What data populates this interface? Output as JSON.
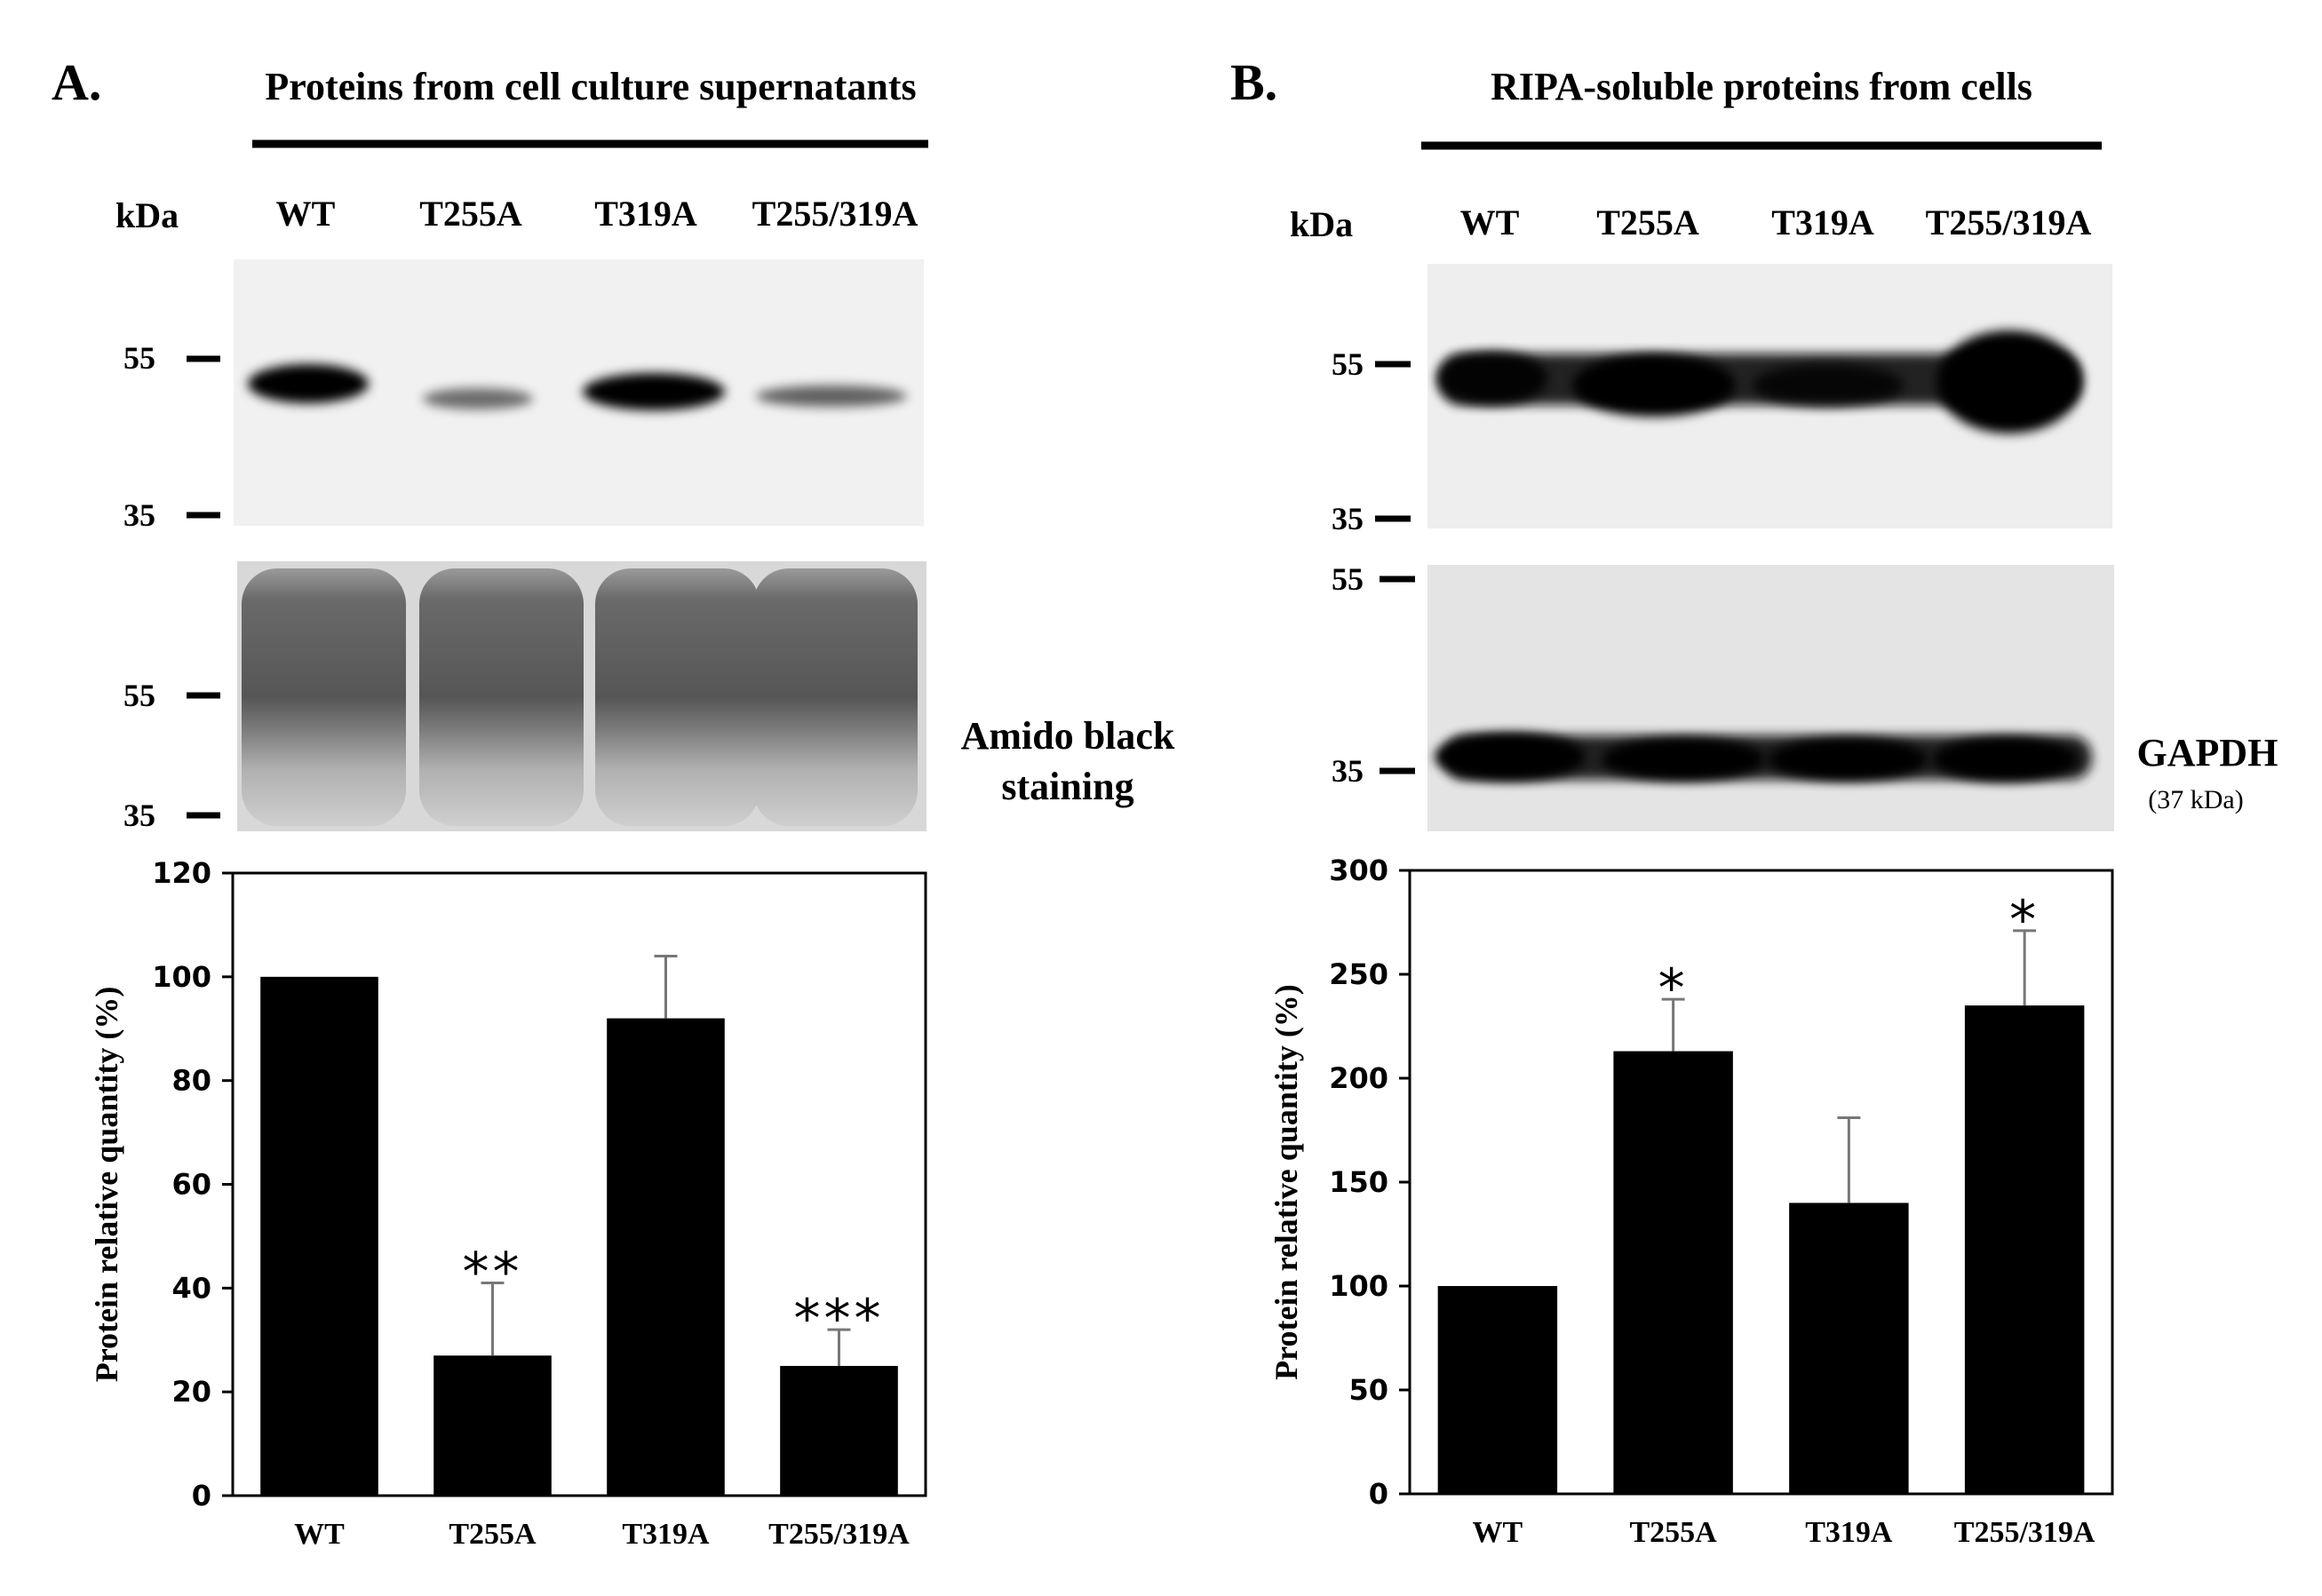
{
  "panels": [
    {
      "letter": "A.",
      "title": "Proteins from cell culture supernatants",
      "kda_label": "kDa",
      "lanes": [
        "WT",
        "T255A",
        "T319A",
        "T255/319A"
      ],
      "blot_markers": [
        "55",
        "35"
      ],
      "loading_markers": [
        "55",
        "35"
      ],
      "loading_label_lines": [
        "Amido black",
        "staining"
      ],
      "loading_sublabel": "",
      "band_intensity": [
        1.0,
        0.35,
        0.92,
        0.3
      ],
      "loading_intensity": [
        1.0,
        1.0,
        1.0,
        1.0
      ]
    },
    {
      "letter": "B.",
      "title": "RIPA-soluble proteins from cells",
      "kda_label": "kDa",
      "lanes": [
        "WT",
        "T255A",
        "T319A",
        "T255/319A"
      ],
      "blot_markers": [
        "55",
        "35"
      ],
      "loading_markers": [
        "55",
        "35"
      ],
      "loading_label_lines": [
        "GAPDH"
      ],
      "loading_sublabel": "(37 kDa)",
      "band_intensity": [
        0.9,
        1.0,
        0.75,
        1.0
      ],
      "loading_intensity": [
        1.0,
        0.95,
        0.95,
        0.95
      ]
    }
  ],
  "chart_data": [
    {
      "type": "bar",
      "categories": [
        "WT",
        "T255A",
        "T319A",
        "T255/319A"
      ],
      "values": [
        100,
        27,
        92,
        25
      ],
      "errors": [
        0.5,
        14,
        12,
        7
      ],
      "significance": [
        "",
        "**",
        "",
        "***"
      ],
      "ylabel": "Protein relative quantity (%)",
      "ylim": [
        0,
        120
      ],
      "yticks": [
        0,
        20,
        40,
        60,
        80,
        100,
        120
      ],
      "bar_color": "#000000",
      "grid": false
    },
    {
      "type": "bar",
      "categories": [
        "WT",
        "T255A",
        "T319A",
        "T255/319A"
      ],
      "values": [
        100,
        213,
        140,
        235
      ],
      "errors": [
        0.5,
        25,
        41,
        36
      ],
      "significance": [
        "",
        "*",
        "",
        "*"
      ],
      "ylabel": "Protein relative quantity (%)",
      "ylim": [
        0,
        300
      ],
      "yticks": [
        0,
        50,
        100,
        150,
        200,
        250,
        300
      ],
      "bar_color": "#000000",
      "grid": false
    }
  ]
}
